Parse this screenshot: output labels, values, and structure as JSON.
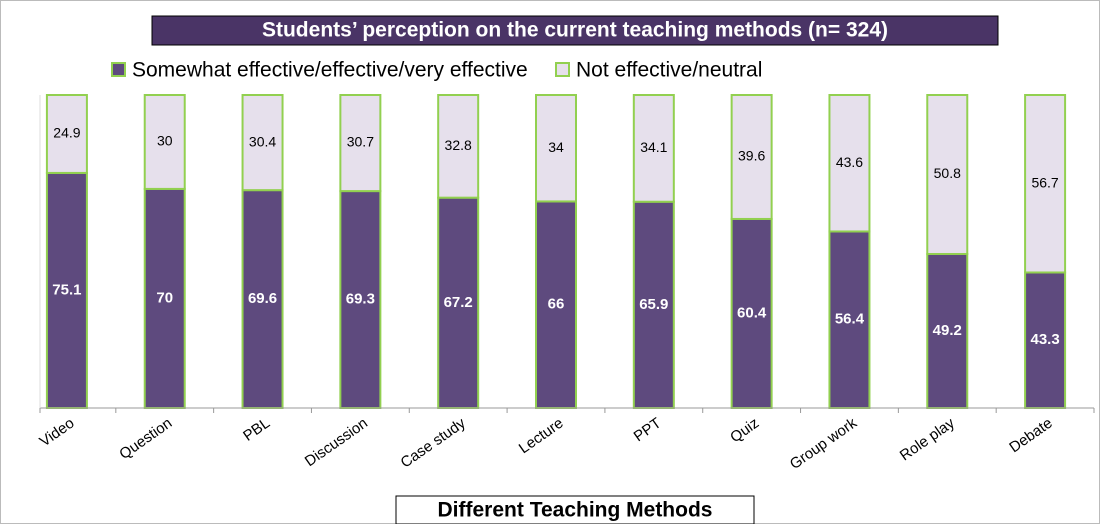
{
  "chart_data": {
    "type": "stacked_bar",
    "title": "Students’ perception on the current teaching methods (n= 324)",
    "x_label": "Different Teaching Methods",
    "categories": [
      "Video",
      "Question",
      "PBL",
      "Discussion",
      "Case study",
      "Lecture",
      "PPT",
      "Quiz",
      "Group work",
      "Role play",
      "Debate"
    ],
    "series": [
      {
        "name": "Somewhat effective/effective/very effective",
        "color": "#5e4a7e",
        "values": [
          75.1,
          70,
          69.6,
          69.3,
          67.2,
          66,
          65.9,
          60.4,
          56.4,
          49.2,
          43.3
        ]
      },
      {
        "name": "Not effective/neutral",
        "color": "#e6e0ec",
        "values": [
          24.9,
          30,
          30.4,
          30.7,
          32.8,
          34,
          34.1,
          39.6,
          43.6,
          50.8,
          56.7
        ]
      }
    ],
    "edge_color": "#92d050"
  }
}
